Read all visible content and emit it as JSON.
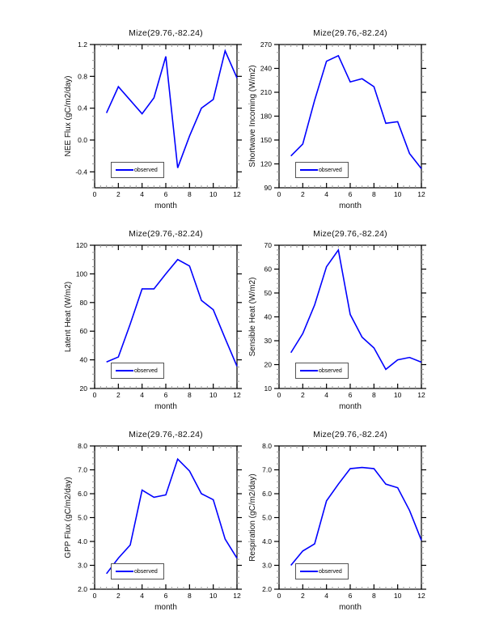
{
  "page": {
    "background": "#ffffff"
  },
  "colors": {
    "line": "#0000ff",
    "axis": "#000000",
    "minor_tick": "#999999",
    "text": "#111111"
  },
  "chart_data": [
    {
      "type": "line",
      "title": "Mize(29.76,-82.24)",
      "xlabel": "month",
      "ylabel": "NEE Flux (gC/m2/day)",
      "x": [
        1,
        2,
        3,
        4,
        5,
        6,
        7,
        8,
        9,
        10,
        11,
        12
      ],
      "series": [
        {
          "name": "observed",
          "color": "#0000ff",
          "values": [
            0.34,
            0.67,
            0.5,
            0.33,
            0.53,
            1.05,
            -0.35,
            0.05,
            0.4,
            0.51,
            1.12,
            0.78
          ]
        }
      ],
      "xlim": [
        0,
        12
      ],
      "ylim": [
        -0.6,
        1.2
      ],
      "xticks": [
        {
          "v": 0,
          "label": "0"
        },
        {
          "v": 2,
          "label": "2"
        },
        {
          "v": 4,
          "label": "4"
        },
        {
          "v": 6,
          "label": "6"
        },
        {
          "v": 8,
          "label": "8"
        },
        {
          "v": 10,
          "label": "10"
        },
        {
          "v": 12,
          "label": "12"
        }
      ],
      "yticks": [
        {
          "v": -0.4,
          "label": "-0.4"
        },
        {
          "v": 0.0,
          "label": "0.0"
        },
        {
          "v": 0.4,
          "label": "0.4"
        },
        {
          "v": 0.8,
          "label": "0.8"
        },
        {
          "v": 1.2,
          "label": "1.2"
        }
      ],
      "x_minor_step": 0.5,
      "y_minor_step": 0.1,
      "legend_position": "lower-left",
      "grid": false
    },
    {
      "type": "line",
      "title": "Mize(29.76,-82.24)",
      "xlabel": "month",
      "ylabel": "Shortwave Incoming (W/m2)",
      "x": [
        1,
        2,
        3,
        4,
        5,
        6,
        7,
        8,
        9,
        10,
        11,
        12
      ],
      "series": [
        {
          "name": "observed",
          "color": "#0000ff",
          "values": [
            130,
            145,
            200,
            249,
            256,
            223,
            227,
            217,
            171,
            173,
            133,
            114
          ]
        }
      ],
      "xlim": [
        0,
        12
      ],
      "ylim": [
        90,
        270
      ],
      "xticks": [
        {
          "v": 0,
          "label": "0"
        },
        {
          "v": 2,
          "label": "2"
        },
        {
          "v": 4,
          "label": "4"
        },
        {
          "v": 6,
          "label": "6"
        },
        {
          "v": 8,
          "label": "8"
        },
        {
          "v": 10,
          "label": "10"
        },
        {
          "v": 12,
          "label": "12"
        }
      ],
      "yticks": [
        {
          "v": 90,
          "label": "90"
        },
        {
          "v": 120,
          "label": "120"
        },
        {
          "v": 150,
          "label": "150"
        },
        {
          "v": 180,
          "label": "180"
        },
        {
          "v": 210,
          "label": "210"
        },
        {
          "v": 240,
          "label": "240"
        },
        {
          "v": 270,
          "label": "270"
        }
      ],
      "x_minor_step": 0.5,
      "y_minor_step": 10,
      "legend_position": "lower-left",
      "grid": false
    },
    {
      "type": "line",
      "title": "Mize(29.76,-82.24)",
      "xlabel": "month",
      "ylabel": "Latent Heat (W/m2)",
      "x": [
        1,
        2,
        3,
        4,
        5,
        6,
        7,
        8,
        9,
        10,
        11,
        12
      ],
      "series": [
        {
          "name": "observed",
          "color": "#0000ff",
          "values": [
            38.5,
            42,
            65,
            89.5,
            89.5,
            100,
            110,
            105.5,
            81.5,
            75,
            55,
            35.5
          ]
        }
      ],
      "xlim": [
        0,
        12
      ],
      "ylim": [
        20,
        120
      ],
      "xticks": [
        {
          "v": 0,
          "label": "0"
        },
        {
          "v": 2,
          "label": "2"
        },
        {
          "v": 4,
          "label": "4"
        },
        {
          "v": 6,
          "label": "6"
        },
        {
          "v": 8,
          "label": "8"
        },
        {
          "v": 10,
          "label": "10"
        },
        {
          "v": 12,
          "label": "12"
        }
      ],
      "yticks": [
        {
          "v": 20,
          "label": "20"
        },
        {
          "v": 40,
          "label": "40"
        },
        {
          "v": 60,
          "label": "60"
        },
        {
          "v": 80,
          "label": "80"
        },
        {
          "v": 100,
          "label": "100"
        },
        {
          "v": 120,
          "label": "120"
        }
      ],
      "x_minor_step": 0.5,
      "y_minor_step": 5,
      "legend_position": "lower-left",
      "grid": false
    },
    {
      "type": "line",
      "title": "Mize(29.76,-82.24)",
      "xlabel": "month",
      "ylabel": "Sensible Heat (W/m2)",
      "x": [
        1,
        2,
        3,
        4,
        5,
        6,
        7,
        8,
        9,
        10,
        11,
        12
      ],
      "series": [
        {
          "name": "observed",
          "color": "#0000ff",
          "values": [
            25,
            33,
            45,
            61,
            68,
            41,
            31.5,
            27,
            18,
            22,
            23,
            21
          ]
        }
      ],
      "xlim": [
        0,
        12
      ],
      "ylim": [
        10,
        70
      ],
      "xticks": [
        {
          "v": 0,
          "label": "0"
        },
        {
          "v": 2,
          "label": "2"
        },
        {
          "v": 4,
          "label": "4"
        },
        {
          "v": 6,
          "label": "6"
        },
        {
          "v": 8,
          "label": "8"
        },
        {
          "v": 10,
          "label": "10"
        },
        {
          "v": 12,
          "label": "12"
        }
      ],
      "yticks": [
        {
          "v": 10,
          "label": "10"
        },
        {
          "v": 20,
          "label": "20"
        },
        {
          "v": 30,
          "label": "30"
        },
        {
          "v": 40,
          "label": "40"
        },
        {
          "v": 50,
          "label": "50"
        },
        {
          "v": 60,
          "label": "60"
        },
        {
          "v": 70,
          "label": "70"
        }
      ],
      "x_minor_step": 0.5,
      "y_minor_step": 2,
      "legend_position": "lower-left",
      "grid": false
    },
    {
      "type": "line",
      "title": "Mize(29.76,-82.24)",
      "xlabel": "month",
      "ylabel": "GPP Flux (gC/m2/day)",
      "x": [
        1,
        2,
        3,
        4,
        5,
        6,
        7,
        8,
        9,
        10,
        11,
        12
      ],
      "series": [
        {
          "name": "observed",
          "color": "#0000ff",
          "values": [
            2.65,
            3.3,
            3.85,
            6.15,
            5.85,
            5.95,
            7.45,
            6.95,
            6.0,
            5.75,
            4.1,
            3.3
          ]
        }
      ],
      "xlim": [
        0,
        12
      ],
      "ylim": [
        2.0,
        8.0
      ],
      "xticks": [
        {
          "v": 0,
          "label": "0"
        },
        {
          "v": 2,
          "label": "2"
        },
        {
          "v": 4,
          "label": "4"
        },
        {
          "v": 6,
          "label": "6"
        },
        {
          "v": 8,
          "label": "8"
        },
        {
          "v": 10,
          "label": "10"
        },
        {
          "v": 12,
          "label": "12"
        }
      ],
      "yticks": [
        {
          "v": 2.0,
          "label": "2.0"
        },
        {
          "v": 3.0,
          "label": "3.0"
        },
        {
          "v": 4.0,
          "label": "4.0"
        },
        {
          "v": 5.0,
          "label": "5.0"
        },
        {
          "v": 6.0,
          "label": "6.0"
        },
        {
          "v": 7.0,
          "label": "7.0"
        },
        {
          "v": 8.0,
          "label": "8.0"
        }
      ],
      "x_minor_step": 0.5,
      "y_minor_step": 0.25,
      "legend_position": "lower-left",
      "grid": false
    },
    {
      "type": "line",
      "title": "Mize(29.76,-82.24)",
      "xlabel": "month",
      "ylabel": "Respiration (gC/m2/day)",
      "x": [
        1,
        2,
        3,
        4,
        5,
        6,
        7,
        8,
        9,
        10,
        11,
        12
      ],
      "series": [
        {
          "name": "observed",
          "color": "#0000ff",
          "values": [
            3.0,
            3.6,
            3.9,
            5.7,
            6.4,
            7.05,
            7.1,
            7.05,
            6.4,
            6.25,
            5.3,
            4.05
          ]
        }
      ],
      "xlim": [
        0,
        12
      ],
      "ylim": [
        2.0,
        8.0
      ],
      "xticks": [
        {
          "v": 0,
          "label": "0"
        },
        {
          "v": 2,
          "label": "2"
        },
        {
          "v": 4,
          "label": "4"
        },
        {
          "v": 6,
          "label": "6"
        },
        {
          "v": 8,
          "label": "8"
        },
        {
          "v": 10,
          "label": "10"
        },
        {
          "v": 12,
          "label": "12"
        }
      ],
      "yticks": [
        {
          "v": 2.0,
          "label": "2.0"
        },
        {
          "v": 3.0,
          "label": "3.0"
        },
        {
          "v": 4.0,
          "label": "4.0"
        },
        {
          "v": 5.0,
          "label": "5.0"
        },
        {
          "v": 6.0,
          "label": "6.0"
        },
        {
          "v": 7.0,
          "label": "7.0"
        },
        {
          "v": 8.0,
          "label": "8.0"
        }
      ],
      "x_minor_step": 0.5,
      "y_minor_step": 0.25,
      "legend_position": "lower-left",
      "grid": false
    }
  ]
}
